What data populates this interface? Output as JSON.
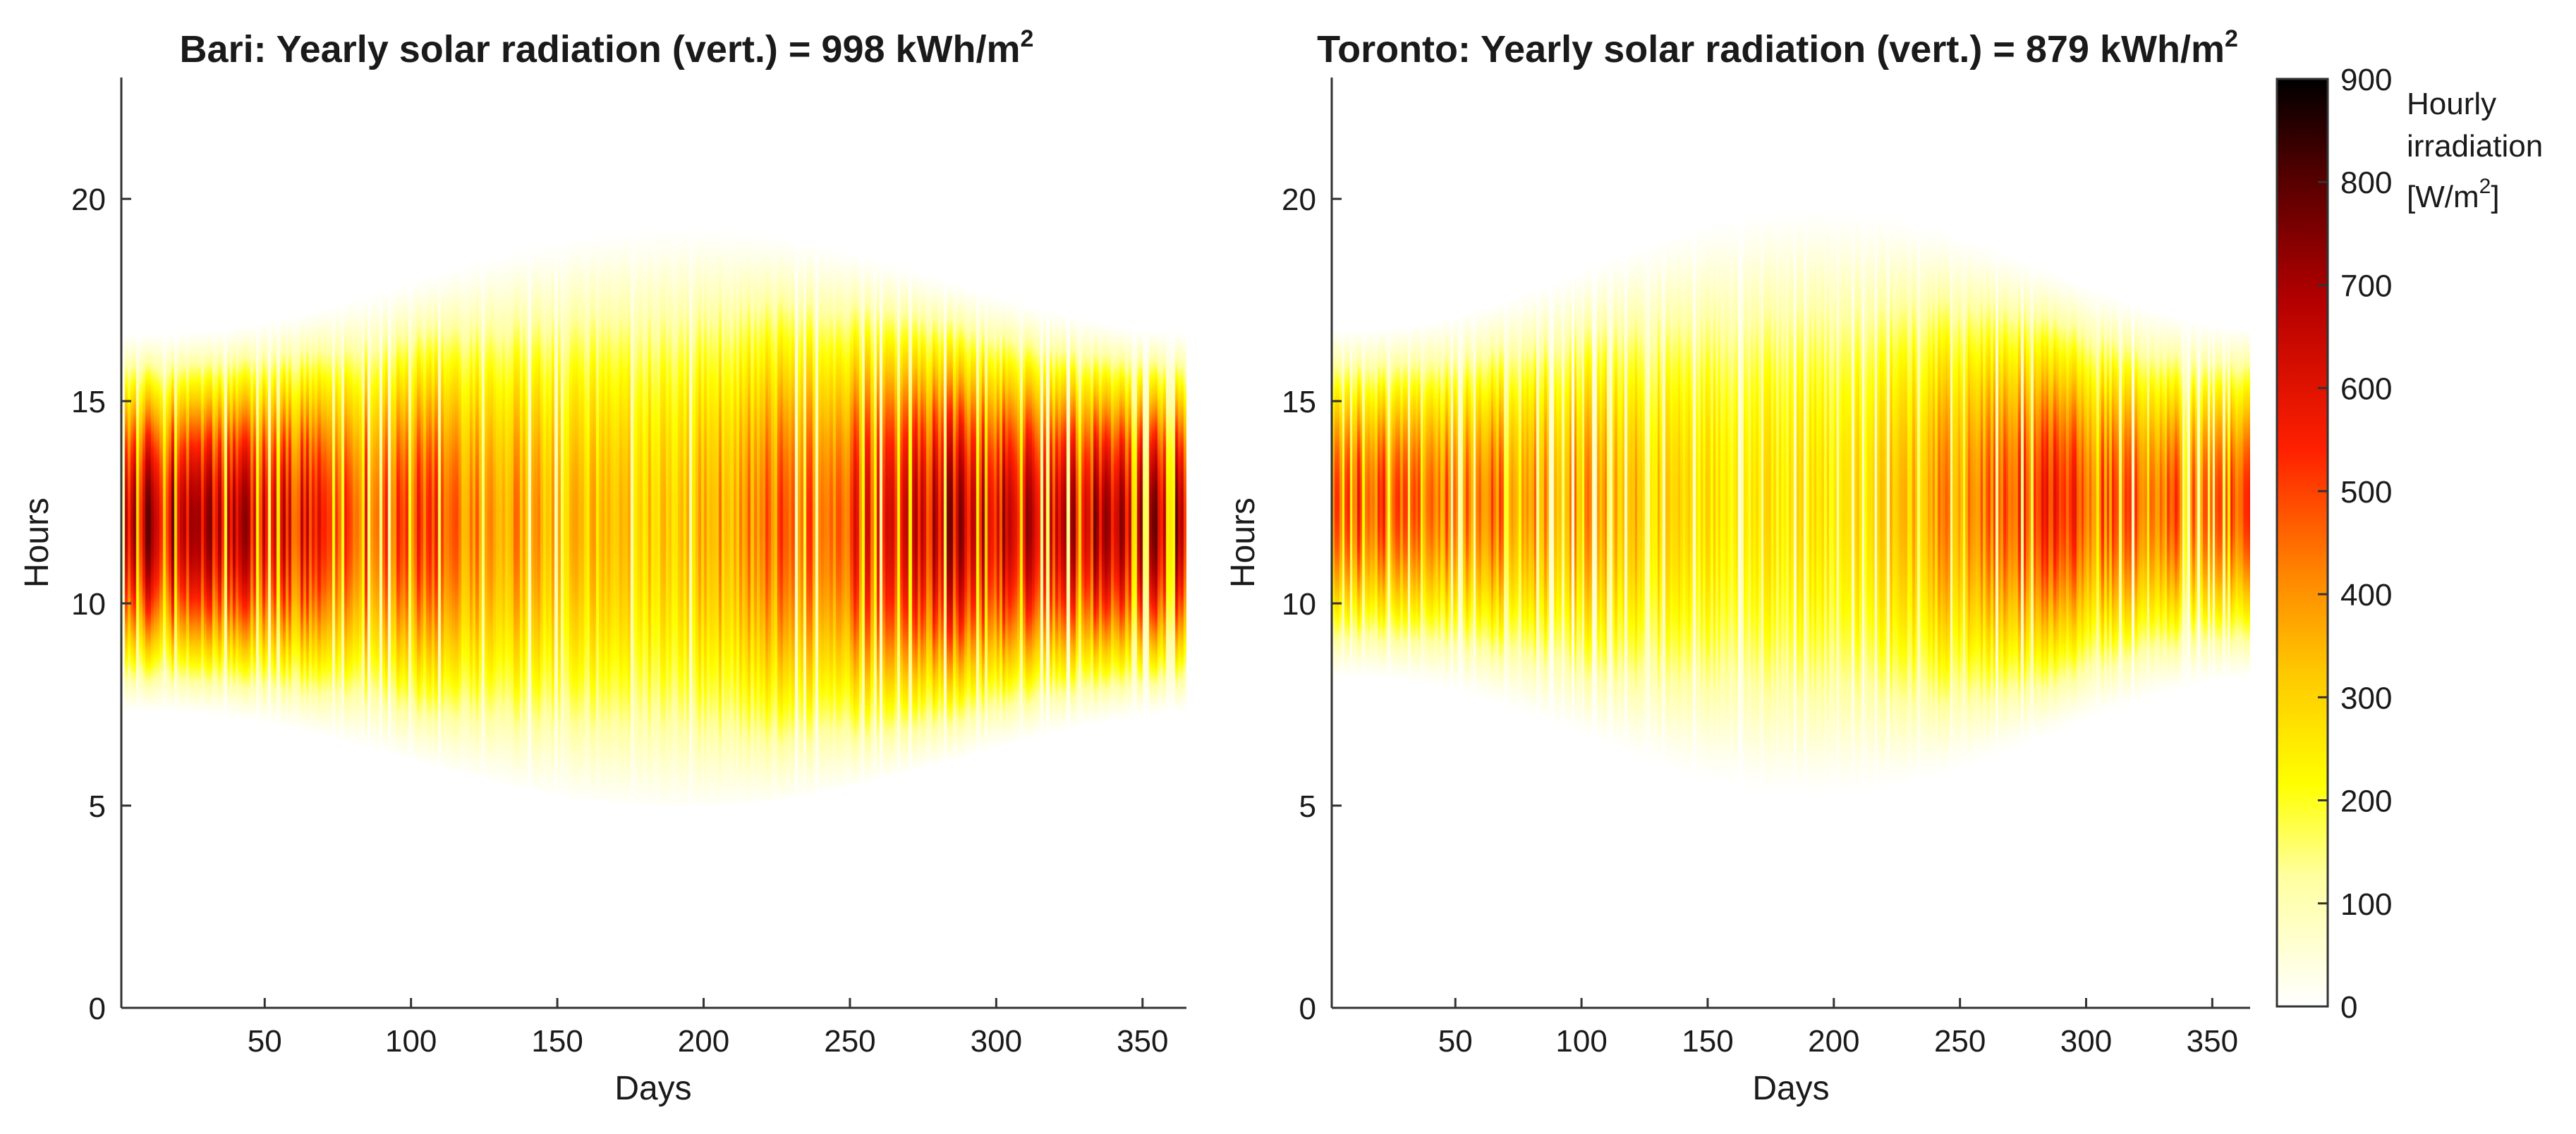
{
  "chart_data": [
    {
      "type": "heatmap",
      "title": "Bari: Yearly solar radiation (vert.) = 998 kWh/m",
      "title_superscript": "2",
      "xlabel": "Days",
      "ylabel": "Hours",
      "xlim": [
        1,
        365
      ],
      "ylim": [
        0,
        23
      ],
      "x_ticks": [
        50,
        100,
        150,
        200,
        250,
        300,
        350
      ],
      "y_ticks": [
        0,
        5,
        10,
        15,
        20
      ],
      "profile": {
        "sunrise_winter": 7.3,
        "sunrise_summer": 5.0,
        "sunset_winter": 16.7,
        "sunset_summer": 19.6,
        "noon": 12.0,
        "peak_by_month": [
          {
            "day": 15,
            "value": 700
          },
          {
            "day": 45,
            "value": 660
          },
          {
            "day": 75,
            "value": 580
          },
          {
            "day": 105,
            "value": 520
          },
          {
            "day": 135,
            "value": 420
          },
          {
            "day": 165,
            "value": 340
          },
          {
            "day": 195,
            "value": 370
          },
          {
            "day": 225,
            "value": 470
          },
          {
            "day": 255,
            "value": 560
          },
          {
            "day": 285,
            "value": 680
          },
          {
            "day": 315,
            "value": 650
          },
          {
            "day": 345,
            "value": 690
          }
        ]
      }
    },
    {
      "type": "heatmap",
      "title": "Toronto: Yearly solar radiation (vert.) = 879 kWh/m",
      "title_superscript": "2",
      "xlabel": "Days",
      "ylabel": "Hours",
      "xlim": [
        1,
        365
      ],
      "ylim": [
        0,
        23
      ],
      "x_ticks": [
        50,
        100,
        150,
        200,
        250,
        300,
        350
      ],
      "y_ticks": [
        0,
        5,
        10,
        15,
        20
      ],
      "profile": {
        "sunrise_winter": 8.0,
        "sunrise_summer": 5.3,
        "sunset_winter": 16.7,
        "sunset_summer": 19.8,
        "noon": 12.5,
        "peak_by_month": [
          {
            "day": 15,
            "value": 520
          },
          {
            "day": 45,
            "value": 460
          },
          {
            "day": 75,
            "value": 480
          },
          {
            "day": 105,
            "value": 400
          },
          {
            "day": 135,
            "value": 320
          },
          {
            "day": 165,
            "value": 270
          },
          {
            "day": 195,
            "value": 280
          },
          {
            "day": 225,
            "value": 330
          },
          {
            "day": 255,
            "value": 460
          },
          {
            "day": 285,
            "value": 560
          },
          {
            "day": 315,
            "value": 470
          },
          {
            "day": 345,
            "value": 500
          }
        ]
      }
    }
  ],
  "colorbar": {
    "label_lines": [
      "Hourly",
      "irradiation",
      "[W/m"
    ],
    "label_superscript": "2",
    "label_suffix": "]",
    "ticks": [
      0,
      100,
      200,
      300,
      400,
      500,
      600,
      700,
      800,
      900
    ],
    "range": [
      0,
      900
    ],
    "colormap": "hot-reversed",
    "colors": [
      "#ffffff",
      "#ffff00",
      "#ff9600",
      "#ff1a00",
      "#b40000",
      "#000000"
    ]
  }
}
